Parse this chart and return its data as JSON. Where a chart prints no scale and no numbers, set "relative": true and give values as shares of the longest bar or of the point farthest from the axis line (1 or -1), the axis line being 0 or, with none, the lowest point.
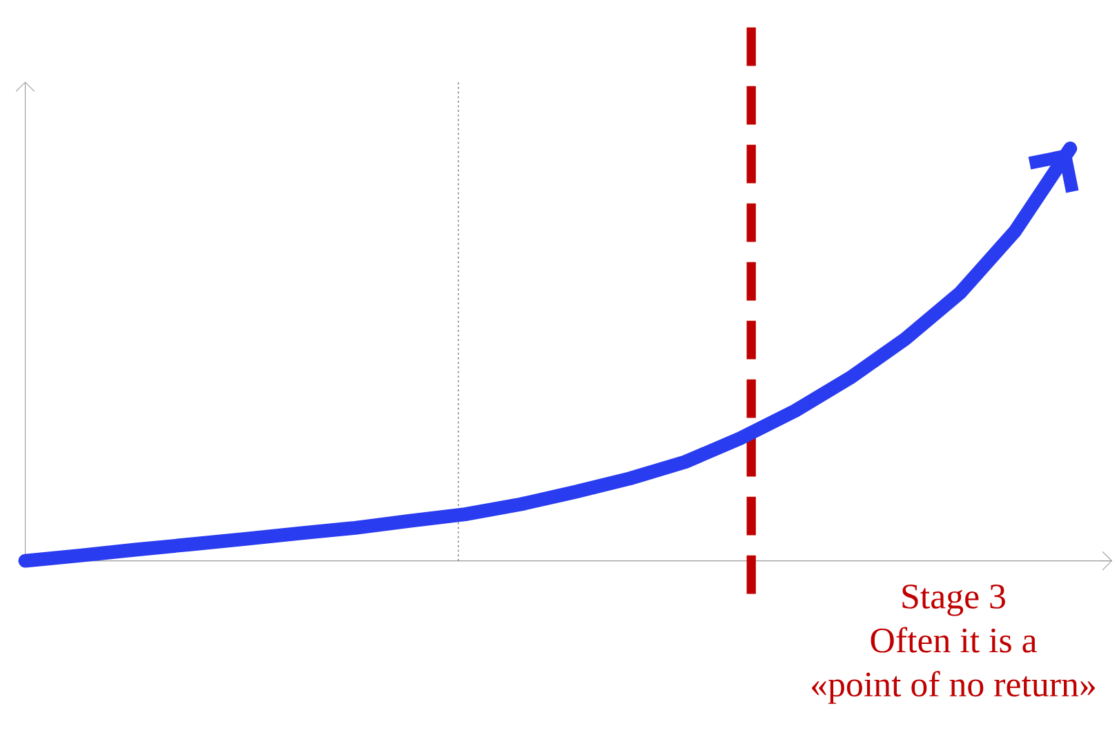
{
  "chart_data": {
    "type": "line",
    "relative": true,
    "categories": [
      null,
      null,
      null,
      null,
      null,
      null,
      null,
      null,
      null,
      null,
      null,
      null,
      null,
      null,
      null,
      null,
      null,
      null,
      null,
      null
    ],
    "series": [
      {
        "color": "#2a3cf0",
        "values": [
          0,
          0.013,
          0.027,
          0.04,
          0.053,
          0.067,
          0.08,
          0.097,
          0.113,
          0.137,
          0.167,
          0.2,
          0.24,
          0.297,
          0.364,
          0.444,
          0.538,
          0.65,
          0.8,
          1
        ]
      }
    ],
    "annotations": [
      "Stage 3",
      "Often it is a",
      "«point of no return»"
    ]
  }
}
